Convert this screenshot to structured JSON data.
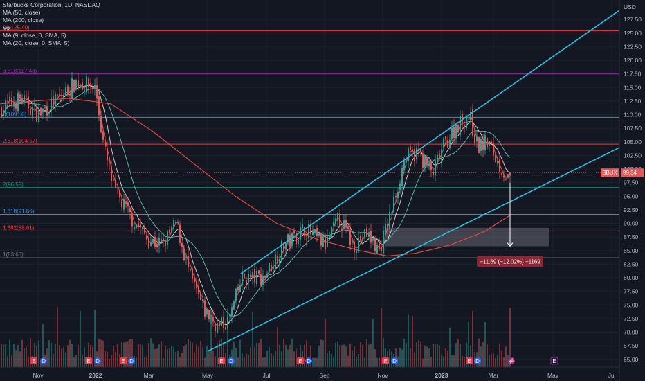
{
  "header": {
    "symbol_title": "Starbucks Corporation, 1D, NASDAQ",
    "indicators": [
      "MA (50, close)",
      "MA (200, close)",
      "Vol",
      "MA (9, close, 0, SMA, 5)",
      "MA (20, close, 0, SMA, 5)"
    ]
  },
  "price_axis": {
    "currency": "USD",
    "ticks": [
      "127.50",
      "125.00",
      "122.50",
      "120.00",
      "117.50",
      "115.00",
      "112.50",
      "110.00",
      "107.50",
      "105.00",
      "102.50",
      "100.00",
      "97.50",
      "95.00",
      "92.50",
      "90.00",
      "87.50",
      "85.00",
      "82.50",
      "80.00",
      "77.50",
      "75.00",
      "72.50",
      "70.00",
      "67.50",
      "65.00"
    ],
    "current_symbol_tag": "SBUX",
    "current_price": "99.34",
    "upper_hline_label": "36(125.40)"
  },
  "time_axis": {
    "labels": [
      "Nov",
      "2022",
      "Mar",
      "May",
      "Jul",
      "Sep",
      "Nov",
      "2023",
      "Mar",
      "May",
      "Jul"
    ]
  },
  "fib_levels": [
    {
      "label": "3.618(117.48)",
      "price": 117.48,
      "color": "#9c27b0"
    },
    {
      "label": "3(109.50)",
      "price": 109.5,
      "color": "#2196f3"
    },
    {
      "label": "2.618(104.57)",
      "price": 104.57,
      "color": "#f23645"
    },
    {
      "label": "2(96.59)",
      "price": 96.59,
      "color": "#089981"
    },
    {
      "label": "1.618(91.66)",
      "price": 91.66,
      "color": "#2196f3"
    },
    {
      "label": "1.382(88.61)",
      "price": 88.61,
      "color": "#f23645"
    },
    {
      "label": "1(83.68)",
      "price": 83.68,
      "color": "#787b86"
    }
  ],
  "measure": {
    "text": "−11.69 (−12.02%) −1169"
  },
  "colors": {
    "up": "#26a69a",
    "down": "#ef5350",
    "channel": "#22c4e6",
    "ma200": "#e04a3f",
    "ma50": "#5bb5a8",
    "ma_fast": "#e8e8e8",
    "ma_mid": "#f06060",
    "earnings": "#f23645",
    "dividend": "#2962ff"
  },
  "chart_data": {
    "type": "candlestick",
    "title": "Starbucks Corporation, 1D, NASDAQ",
    "ylim": [
      64,
      130
    ],
    "x": [
      "2021-10-01",
      "2021-10-22",
      "2021-11-05",
      "2021-11-26",
      "2021-12-17",
      "2022-01-07",
      "2022-01-28",
      "2022-02-18",
      "2022-03-11",
      "2022-04-01",
      "2022-04-22",
      "2022-05-13",
      "2022-06-03",
      "2022-06-24",
      "2022-07-15",
      "2022-08-05",
      "2022-08-26",
      "2022-09-16",
      "2022-10-07",
      "2022-10-28",
      "2022-11-18",
      "2022-12-09",
      "2022-12-30",
      "2023-01-20",
      "2023-02-10",
      "2023-03-03",
      "2023-03-17"
    ],
    "close": [
      111,
      113,
      110,
      114,
      115,
      109,
      96,
      92,
      83,
      88,
      79,
      72,
      74,
      80,
      85,
      88,
      90,
      86,
      88,
      89,
      101,
      99,
      104,
      108,
      109,
      103,
      97.5
    ],
    "earnings_markers": [
      "E",
      "D",
      "E",
      "E",
      "D",
      "E",
      "D",
      "E",
      "D",
      "E",
      "D",
      "E"
    ]
  }
}
